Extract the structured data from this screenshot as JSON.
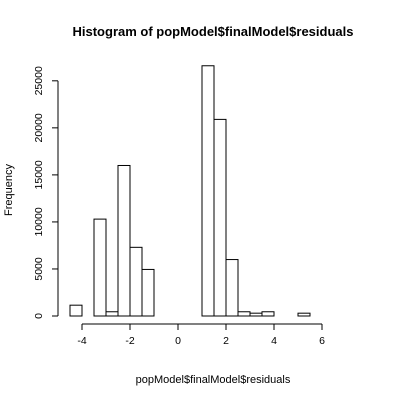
{
  "chart_data": {
    "type": "bar",
    "title": "Histogram of popModel$finalModel$residuals",
    "xlabel": "popModel$finalModel$residuals",
    "ylabel": "Frequency",
    "xlim": [
      -4.5,
      7.5
    ],
    "ylim": [
      0,
      27000
    ],
    "bin_width": 0.5,
    "bins": [
      {
        "x0": -4.5,
        "x1": -4.0,
        "count": 1150
      },
      {
        "x0": -4.0,
        "x1": -3.5,
        "count": 0
      },
      {
        "x0": -3.5,
        "x1": -3.0,
        "count": 10300
      },
      {
        "x0": -3.0,
        "x1": -2.5,
        "count": 450
      },
      {
        "x0": -2.5,
        "x1": -2.0,
        "count": 16000
      },
      {
        "x0": -2.0,
        "x1": -1.5,
        "count": 7300
      },
      {
        "x0": -1.5,
        "x1": -1.0,
        "count": 4950
      },
      {
        "x0": -1.0,
        "x1": -0.5,
        "count": 0
      },
      {
        "x0": -0.5,
        "x1": 0.0,
        "count": 0
      },
      {
        "x0": 0.0,
        "x1": 0.5,
        "count": 0
      },
      {
        "x0": 0.5,
        "x1": 1.0,
        "count": 0
      },
      {
        "x0": 1.0,
        "x1": 1.5,
        "count": 26600
      },
      {
        "x0": 1.5,
        "x1": 2.0,
        "count": 20900
      },
      {
        "x0": 2.0,
        "x1": 2.5,
        "count": 6000
      },
      {
        "x0": 2.5,
        "x1": 3.0,
        "count": 450
      },
      {
        "x0": 3.0,
        "x1": 3.5,
        "count": 300
      },
      {
        "x0": 3.5,
        "x1": 4.0,
        "count": 450
      },
      {
        "x0": 4.0,
        "x1": 4.5,
        "count": 0
      },
      {
        "x0": 4.5,
        "x1": 5.0,
        "count": 0
      },
      {
        "x0": 5.0,
        "x1": 5.5,
        "count": 300
      },
      {
        "x0": 5.5,
        "x1": 6.0,
        "count": 0
      },
      {
        "x0": 6.0,
        "x1": 6.5,
        "count": 0
      },
      {
        "x0": 6.5,
        "x1": 7.0,
        "count": 0
      },
      {
        "x0": 7.0,
        "x1": 7.5,
        "count": 0
      }
    ],
    "x_ticks": [
      -4,
      -2,
      0,
      2,
      4,
      6
    ],
    "x_tick_labels": [
      "-4",
      "-2",
      "0",
      "2",
      "4",
      "6"
    ],
    "y_ticks": [
      0,
      5000,
      10000,
      15000,
      20000,
      25000
    ],
    "y_tick_labels": [
      "0",
      "5000",
      "10000",
      "15000",
      "20000",
      "25000"
    ],
    "legend": "none",
    "grid": false
  }
}
